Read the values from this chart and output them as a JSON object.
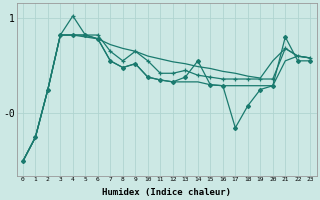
{
  "xlabel": "Humidex (Indice chaleur)",
  "bg_color": "#cce8e4",
  "grid_color": "#b0d4d0",
  "line_color": "#1a7a6e",
  "x": [
    0,
    1,
    2,
    3,
    4,
    5,
    6,
    7,
    8,
    9,
    10,
    11,
    12,
    13,
    14,
    15,
    16,
    17,
    18,
    19,
    20,
    21,
    22,
    23
  ],
  "line1_nomark": [
    -0.5,
    -0.25,
    0.25,
    0.82,
    0.82,
    0.8,
    0.78,
    0.72,
    0.68,
    0.65,
    0.6,
    0.57,
    0.54,
    0.52,
    0.49,
    0.47,
    0.44,
    0.42,
    0.39,
    0.37,
    0.55,
    0.68,
    0.6,
    0.58
  ],
  "line2_plus": [
    -0.5,
    -0.25,
    0.25,
    0.82,
    1.02,
    0.82,
    0.82,
    0.65,
    0.55,
    0.65,
    0.55,
    0.42,
    0.42,
    0.45,
    0.4,
    0.38,
    0.36,
    0.36,
    0.36,
    0.36,
    0.36,
    0.68,
    0.6,
    0.58
  ],
  "line3_nomark": [
    -0.5,
    -0.25,
    0.25,
    0.82,
    0.82,
    0.82,
    0.78,
    0.55,
    0.48,
    0.52,
    0.38,
    0.35,
    0.33,
    0.33,
    0.33,
    0.3,
    0.29,
    0.29,
    0.29,
    0.29,
    0.29,
    0.55,
    0.6,
    0.58
  ],
  "line4_dot": [
    -0.5,
    -0.25,
    0.25,
    0.82,
    0.82,
    0.82,
    0.78,
    0.55,
    0.48,
    0.52,
    0.38,
    0.35,
    0.33,
    0.38,
    0.55,
    0.3,
    0.29,
    -0.15,
    0.08,
    0.25,
    0.29,
    0.8,
    0.55,
    0.55
  ],
  "ylim": [
    -0.65,
    1.15
  ],
  "yticks": [
    0.0,
    1.0
  ],
  "ytick_labels": [
    "-0",
    "1"
  ]
}
